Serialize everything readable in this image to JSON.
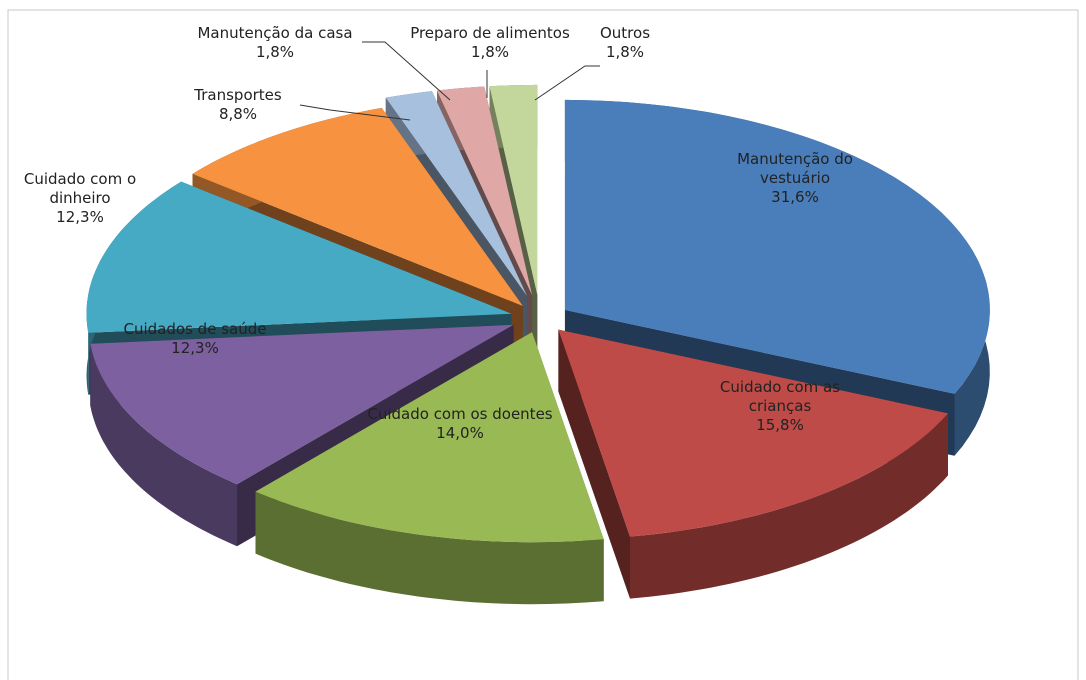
{
  "chart_data": {
    "type": "pie3d",
    "categories": [
      "Manutenção do vestuário",
      "Cuidado com as crianças",
      "Cuidado com os doentes",
      "Cuidados de saúde",
      "Cuidado com o dinheiro",
      "Transportes",
      "Manutenção da casa",
      "Preparo de alimentos",
      "Outros"
    ],
    "values": [
      31.6,
      15.8,
      14.0,
      12.3,
      12.3,
      8.8,
      1.8,
      1.8,
      1.8
    ],
    "value_labels": [
      "31,6%",
      "15,8%",
      "14,0%",
      "12,3%",
      "12,3%",
      "8,8%",
      "1,8%",
      "1,8%",
      "1,8%"
    ],
    "colors": [
      "#4a7ebb",
      "#be4b48",
      "#98b954",
      "#7d60a0",
      "#46aac5",
      "#f69240",
      "#a7c0de",
      "#dfa7a6",
      "#c3d69b"
    ]
  }
}
